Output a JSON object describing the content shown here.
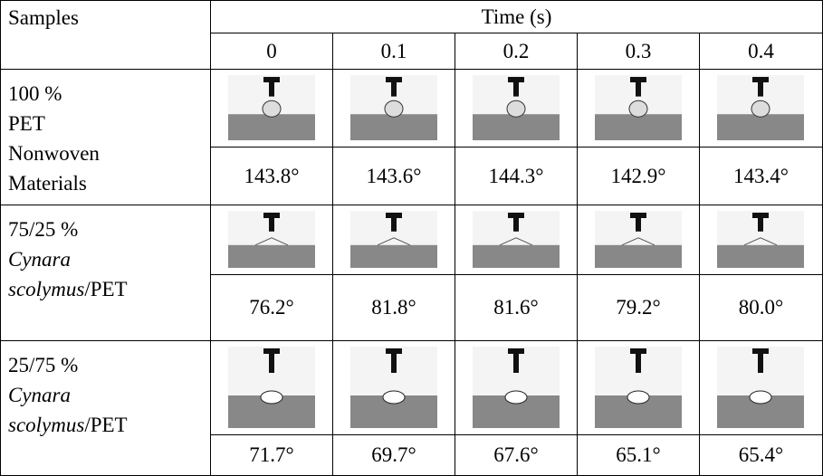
{
  "table": {
    "header": {
      "samples": "Samples",
      "time": "Time (s)",
      "times": [
        "0",
        "0.1",
        "0.2",
        "0.3",
        "0.4"
      ]
    },
    "rows": [
      {
        "sample": [
          [
            {
              "text": "100 %",
              "italic": false
            }
          ],
          [
            {
              "text": "PET",
              "italic": false
            }
          ],
          [
            {
              "text": "Nonwoven",
              "italic": false
            }
          ],
          [
            {
              "text": "Materials",
              "italic": false
            }
          ]
        ],
        "angles": [
          "143.8°",
          "143.6°",
          "144.3°",
          "142.9°",
          "143.4°"
        ]
      },
      {
        "sample": [
          [
            {
              "text": "75/25 %",
              "italic": false
            }
          ],
          [
            {
              "text": "Cynara",
              "italic": true
            }
          ],
          [
            {
              "text": "scolymus",
              "italic": true
            },
            {
              "text": "/PET",
              "italic": false
            }
          ]
        ],
        "angles": [
          "76.2°",
          "81.8°",
          "81.6°",
          "79.2°",
          "80.0°"
        ]
      },
      {
        "sample": [
          [
            {
              "text": "25/75 %",
              "italic": false
            }
          ],
          [
            {
              "text": "Cynara",
              "italic": true
            }
          ],
          [
            {
              "text": "scolymus",
              "italic": true
            },
            {
              "text": "/PET",
              "italic": false
            }
          ]
        ],
        "angles": [
          "71.7°",
          "69.7°",
          "67.6°",
          "65.1°",
          "65.4°"
        ]
      }
    ]
  }
}
